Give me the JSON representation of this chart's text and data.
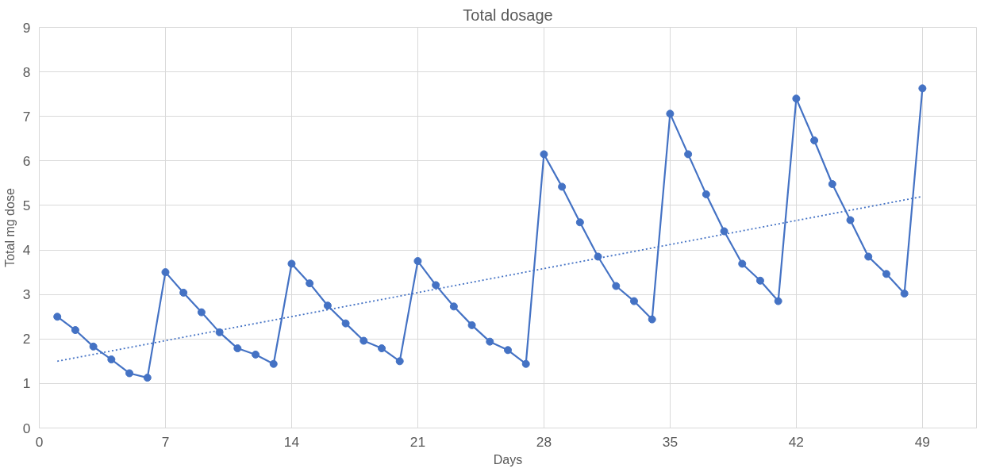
{
  "chart_data": {
    "type": "line",
    "title": "Total dosage",
    "xlabel": "Days",
    "ylabel": "Total mg dose",
    "xlim": [
      0,
      52
    ],
    "xticks": [
      0,
      7,
      14,
      21,
      28,
      35,
      42,
      49
    ],
    "ylim": [
      0,
      9
    ],
    "yticks": [
      0,
      1,
      2,
      3,
      4,
      5,
      6,
      7,
      8,
      9
    ],
    "grid": true,
    "series": [
      {
        "color": "#4472c4",
        "marker": "circle",
        "line_style": "solid",
        "x": [
          1,
          2,
          3,
          4,
          5,
          6,
          7,
          8,
          9,
          10,
          11,
          12,
          13,
          14,
          15,
          16,
          17,
          18,
          19,
          20,
          21,
          22,
          23,
          24,
          25,
          26,
          27,
          28,
          29,
          30,
          31,
          32,
          33,
          34,
          35,
          36,
          37,
          38,
          39,
          40,
          41,
          42,
          43,
          44,
          45,
          46,
          47,
          48,
          49
        ],
        "values": [
          2.5,
          2.2,
          1.83,
          1.54,
          1.23,
          1.13,
          3.5,
          3.04,
          2.6,
          2.15,
          1.79,
          1.65,
          1.44,
          3.69,
          3.25,
          2.75,
          2.35,
          1.96,
          1.79,
          1.5,
          3.75,
          3.21,
          2.73,
          2.31,
          1.94,
          1.75,
          1.44,
          6.15,
          5.42,
          4.62,
          3.85,
          3.19,
          2.85,
          2.44,
          7.06,
          6.15,
          5.25,
          4.42,
          3.69,
          3.31,
          2.85,
          7.4,
          6.46,
          5.48,
          4.67,
          3.85,
          3.46,
          3.02,
          7.63
        ]
      },
      {
        "type": "line",
        "color": "#4472c4",
        "marker": "none",
        "line_style": "dotted",
        "x": [
          1,
          49
        ],
        "values": [
          1.5,
          5.2
        ]
      }
    ]
  }
}
